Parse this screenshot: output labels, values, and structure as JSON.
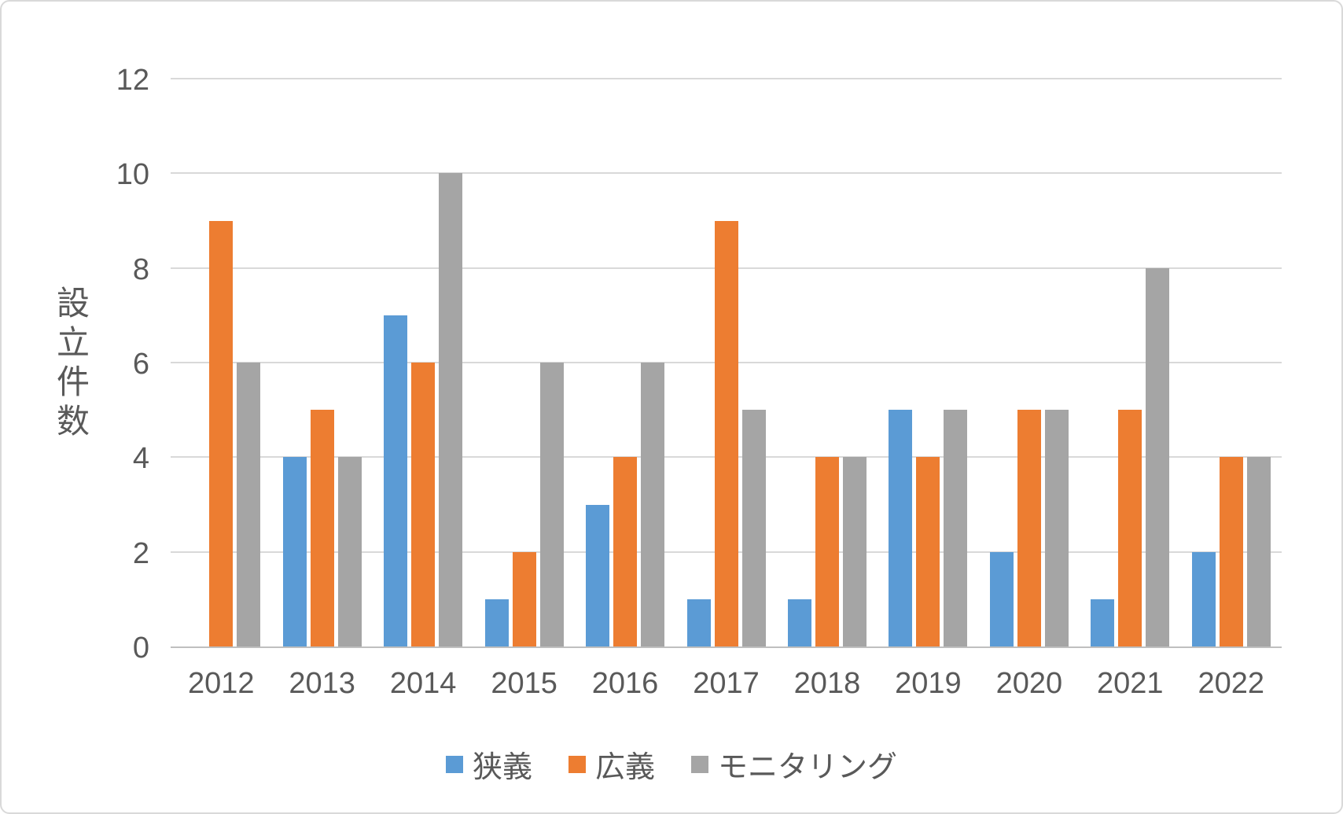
{
  "chart_data": {
    "type": "bar",
    "title": "",
    "xlabel": "",
    "ylabel": "設立件数",
    "ylim": [
      0,
      12
    ],
    "yticks": [
      0,
      2,
      4,
      6,
      8,
      10,
      12
    ],
    "grid": true,
    "legend_position": "bottom",
    "categories": [
      "2012",
      "2013",
      "2014",
      "2015",
      "2016",
      "2017",
      "2018",
      "2019",
      "2020",
      "2021",
      "2022"
    ],
    "series": [
      {
        "name": "狭義",
        "color": "#5B9BD5",
        "values": [
          0,
          4,
          7,
          1,
          3,
          1,
          1,
          5,
          2,
          1,
          2
        ]
      },
      {
        "name": "広義",
        "color": "#ED7D31",
        "values": [
          9,
          5,
          6,
          2,
          4,
          9,
          4,
          4,
          5,
          5,
          4
        ]
      },
      {
        "name": "モニタリング",
        "color": "#A5A5A5",
        "values": [
          6,
          4,
          10,
          6,
          6,
          5,
          4,
          5,
          5,
          8,
          4
        ]
      }
    ]
  },
  "colors": {
    "background": "#FFFFFF",
    "card_border": "#D9D9D9",
    "gridline": "#D9D9D9",
    "axis_line": "#BFBFBF",
    "text": "#595959"
  }
}
